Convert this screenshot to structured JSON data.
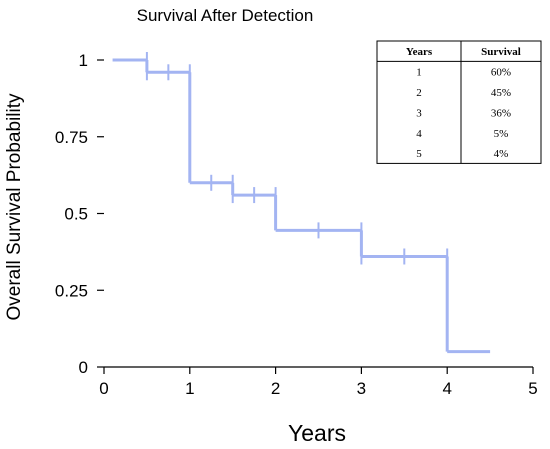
{
  "chart_data": {
    "type": "line",
    "title": "Survival After Detection",
    "xlabel": "Years",
    "ylabel": "Overall Survival Probability",
    "xlim": [
      0,
      5
    ],
    "ylim": [
      0,
      1
    ],
    "x_ticks": [
      0,
      1,
      2,
      3,
      4,
      5
    ],
    "x_tick_labels": [
      "0",
      "1",
      "2",
      "3",
      "4",
      "5"
    ],
    "y_ticks": [
      0,
      0.25,
      0.5,
      0.75,
      1
    ],
    "y_tick_labels": [
      "0",
      "0.25",
      "0.5",
      "0.75",
      "1"
    ],
    "grid": false,
    "line_color": "#a3b4f2",
    "series": [
      {
        "steps": [
          {
            "x_start": 0.1,
            "x_end": 0.5,
            "y": 1.0
          },
          {
            "x_start": 0.5,
            "x_end": 1.0,
            "y": 0.96
          },
          {
            "x_start": 1.0,
            "x_end": 1.5,
            "y": 0.6
          },
          {
            "x_start": 1.5,
            "x_end": 2.0,
            "y": 0.56
          },
          {
            "x_start": 2.0,
            "x_end": 3.0,
            "y": 0.445
          },
          {
            "x_start": 3.0,
            "x_end": 4.0,
            "y": 0.36
          },
          {
            "x_start": 4.0,
            "x_end": 4.5,
            "y": 0.05
          }
        ],
        "censor_marks": [
          {
            "x": 0.5,
            "y": 1.0
          },
          {
            "x": 0.5,
            "y": 0.96
          },
          {
            "x": 0.75,
            "y": 0.96
          },
          {
            "x": 1.0,
            "y": 0.96
          },
          {
            "x": 1.25,
            "y": 0.6
          },
          {
            "x": 1.5,
            "y": 0.6
          },
          {
            "x": 1.5,
            "y": 0.56
          },
          {
            "x": 1.75,
            "y": 0.56
          },
          {
            "x": 2.0,
            "y": 0.56
          },
          {
            "x": 2.5,
            "y": 0.445
          },
          {
            "x": 3.0,
            "y": 0.445
          },
          {
            "x": 3.0,
            "y": 0.36
          },
          {
            "x": 3.5,
            "y": 0.36
          },
          {
            "x": 4.0,
            "y": 0.36
          }
        ]
      }
    ],
    "table": {
      "headers": [
        "Years",
        "Survival"
      ],
      "rows": [
        [
          "1",
          "60%"
        ],
        [
          "2",
          "45%"
        ],
        [
          "3",
          "36%"
        ],
        [
          "4",
          "5%"
        ],
        [
          "5",
          "4%"
        ]
      ],
      "placement": "top-right"
    }
  }
}
